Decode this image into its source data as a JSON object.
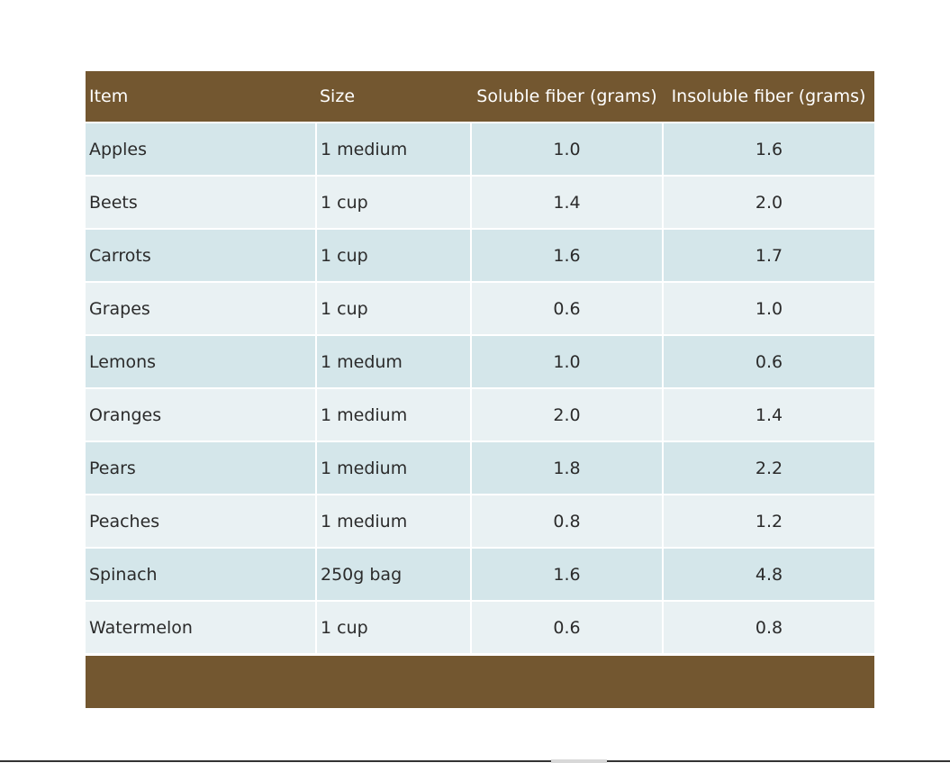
{
  "table": {
    "headers": {
      "item": "Item",
      "size": "Size",
      "soluble": "Soluble fiber (grams)",
      "insoluble": "Insoluble fiber (grams)"
    },
    "rows": [
      {
        "item": "Apples",
        "size": "1 medium",
        "soluble": "1.0",
        "insoluble": "1.6"
      },
      {
        "item": "Beets",
        "size": "1 cup",
        "soluble": "1.4",
        "insoluble": "2.0"
      },
      {
        "item": "Carrots",
        "size": "1 cup",
        "soluble": "1.6",
        "insoluble": "1.7"
      },
      {
        "item": "Grapes",
        "size": "1 cup",
        "soluble": "0.6",
        "insoluble": "1.0"
      },
      {
        "item": "Lemons",
        "size": "1 medum",
        "soluble": "1.0",
        "insoluble": "0.6"
      },
      {
        "item": "Oranges",
        "size": "1 medium",
        "soluble": "2.0",
        "insoluble": "1.4"
      },
      {
        "item": "Pears",
        "size": "1 medium",
        "soluble": "1.8",
        "insoluble": "2.2"
      },
      {
        "item": "Peaches",
        "size": "1 medium",
        "soluble": "0.8",
        "insoluble": "1.2"
      },
      {
        "item": "Spinach",
        "size": "250g bag",
        "soluble": "1.6",
        "insoluble": "4.8"
      },
      {
        "item": "Watermelon",
        "size": "1 cup",
        "soluble": "0.6",
        "insoluble": "0.8"
      }
    ]
  },
  "colors": {
    "header_bg": "#735730",
    "row_odd_bg": "#d4e6ea",
    "row_even_bg": "#e9f1f3"
  }
}
